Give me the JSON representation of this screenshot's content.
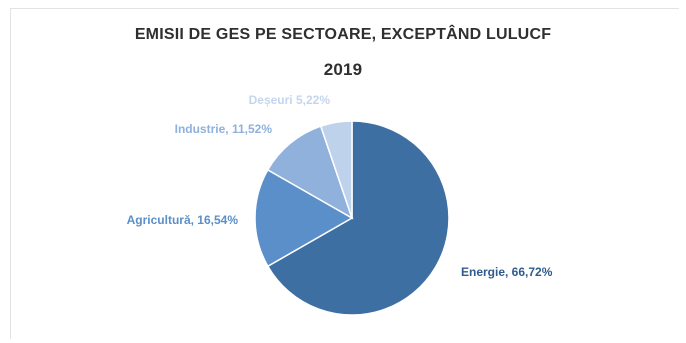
{
  "chart_data": {
    "type": "pie",
    "title": "EMISII DE GES PE SECTOARE, EXCEPTÂND LULUCF",
    "subtitle": "2019",
    "slices": [
      {
        "label": "Energie",
        "value": 66.72,
        "display": "Energie, 66,72%",
        "color": "#3e6fa3",
        "label_color": "#2f5c8c"
      },
      {
        "label": "Agricultură",
        "value": 16.54,
        "display": "Agricultură, 16,54%",
        "color": "#5b8fc9",
        "label_color": "#5b8fc9"
      },
      {
        "label": "Industrie",
        "value": 11.52,
        "display": "Industrie, 11,52%",
        "color": "#8fb1dc",
        "label_color": "#8fb1dc"
      },
      {
        "label": "Deșeuri",
        "value": 5.22,
        "display": "Deșeuri 5,22%",
        "color": "#bfd2ec",
        "label_color": "#c4d6ee"
      }
    ],
    "legend": "none",
    "start_angle_deg": 0,
    "direction": "clockwise"
  }
}
